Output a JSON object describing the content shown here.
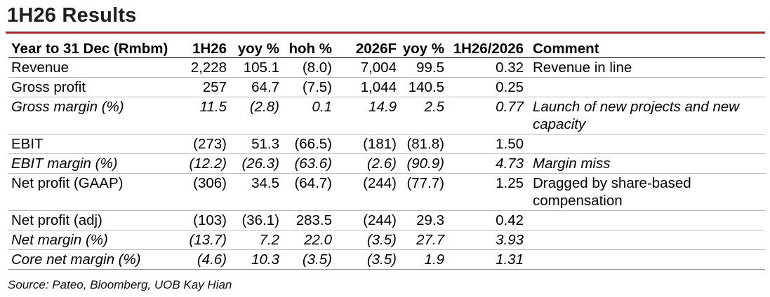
{
  "title": "1H26 Results",
  "table": {
    "headers": [
      "Year to 31 Dec (Rmbm)",
      "1H26",
      "yoy %",
      "hoh %",
      "2026F",
      "yoy %",
      "1H26/2026",
      "Comment"
    ],
    "rows": [
      {
        "label": "Revenue",
        "italic": false,
        "values": [
          "2,228",
          "105.1",
          "(8.0)",
          "7,004",
          "99.5",
          "0.32"
        ],
        "comment": "Revenue in line"
      },
      {
        "label": "Gross profit",
        "italic": false,
        "values": [
          "257",
          "64.7",
          "(7.5)",
          "1,044",
          "140.5",
          "0.25"
        ],
        "comment": ""
      },
      {
        "label": "Gross margin (%)",
        "italic": true,
        "values": [
          "11.5",
          "(2.8)",
          "0.1",
          "14.9",
          "2.5",
          "0.77"
        ],
        "comment": "Launch of new projects and new capacity"
      },
      {
        "label": "EBIT",
        "italic": false,
        "values": [
          "(273)",
          "51.3",
          "(66.5)",
          "(181)",
          "(81.8)",
          "1.50"
        ],
        "comment": ""
      },
      {
        "label": "EBIT margin (%)",
        "italic": true,
        "values": [
          "(12.2)",
          "(26.3)",
          "(63.6)",
          "(2.6)",
          "(90.9)",
          "4.73"
        ],
        "comment": "Margin miss"
      },
      {
        "label": "Net profit (GAAP)",
        "italic": false,
        "values": [
          "(306)",
          "34.5",
          "(64.7)",
          "(244)",
          "(77.7)",
          "1.25"
        ],
        "comment": "Dragged by share-based compensation"
      },
      {
        "label": "Net profit (adj)",
        "italic": false,
        "values": [
          "(103)",
          "(36.1)",
          "283.5",
          "(244)",
          "29.3",
          "0.42"
        ],
        "comment": ""
      },
      {
        "label": "Net margin (%)",
        "italic": true,
        "values": [
          "(13.7)",
          "7.2",
          "22.0",
          "(3.5)",
          "27.7",
          "3.93"
        ],
        "comment": ""
      },
      {
        "label": "Core net margin (%)",
        "italic": true,
        "values": [
          "(4.6)",
          "10.3",
          "(3.5)",
          "(3.5)",
          "1.9",
          "1.31"
        ],
        "comment": ""
      }
    ]
  },
  "source": "Source: Pateo, Bloomberg, UOB Kay Hian",
  "colors": {
    "title_rule": "#c8191e"
  }
}
